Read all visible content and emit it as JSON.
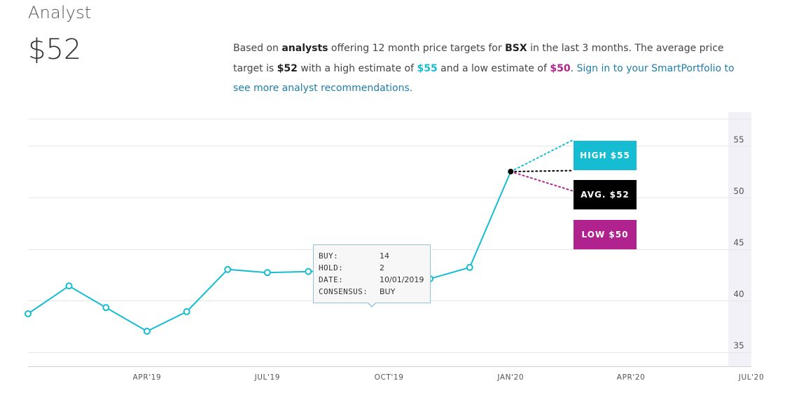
{
  "header": {
    "title": "Analyst",
    "avg_price": "$52"
  },
  "summary": {
    "t1": "Based on ",
    "analysts": "analysts",
    "t2": " offering 12 month price targets for ",
    "ticker": "BSX",
    "t3": " in the last 3 months. The average price target is ",
    "avg": "$52",
    "t4": " with a high estimate of ",
    "high": "$55",
    "t5": " and a low estimate of ",
    "low": "$50",
    "t6": ". ",
    "link": "Sign in to your SmartPortfolio to see more analyst recommendations",
    "t7": "."
  },
  "targets": {
    "high_label": "HIGH $55",
    "avg_label": "AVG. $52",
    "low_label": "LOW $50"
  },
  "tooltip": {
    "buy_key": "BUY:",
    "buy_val": "14",
    "hold_key": "HOLD:",
    "hold_val": "2",
    "date_key": "DATE:",
    "date_val": "10/01/2019",
    "consensus_key": "CONSENSUS:",
    "consensus_val": "BUY"
  },
  "colors": {
    "line": "#16bdd2",
    "high": "#16bdd2",
    "avg": "#000000",
    "low": "#b0238e",
    "grid": "#e6e6e6",
    "forecast_band": "#f1f1f7"
  },
  "chart_data": {
    "type": "line",
    "title": "",
    "xlabel": "",
    "ylabel": "",
    "ylim": [
      33,
      57
    ],
    "y_ticks": [
      35,
      40,
      45,
      50,
      55
    ],
    "y_axis_position": "right",
    "grid": true,
    "x_ticks": [
      {
        "label": "APR'19",
        "date": "2019-04-01"
      },
      {
        "label": "JUL'19",
        "date": "2019-07-01"
      },
      {
        "label": "OCT'19",
        "date": "2019-10-01"
      },
      {
        "label": "JAN'20",
        "date": "2020-01-01"
      },
      {
        "label": "APR'20",
        "date": "2020-04-01"
      },
      {
        "label": "JUL'20",
        "date": "2020-07-01"
      }
    ],
    "xlim": [
      "2019-01-01",
      "2020-07-01"
    ],
    "series": [
      {
        "points": [
          {
            "date": "2019-01-01",
            "value": 38.1
          },
          {
            "date": "2019-02-01",
            "value": 40.8
          },
          {
            "date": "2019-03-01",
            "value": 38.7
          },
          {
            "date": "2019-04-01",
            "value": 36.4
          },
          {
            "date": "2019-05-01",
            "value": 38.3
          },
          {
            "date": "2019-06-01",
            "value": 42.4
          },
          {
            "date": "2019-07-01",
            "value": 42.1
          },
          {
            "date": "2019-08-01",
            "value": 42.2
          },
          {
            "date": "2019-09-01",
            "value": 42.3
          },
          {
            "date": "2019-10-01",
            "value": 40.3
          },
          {
            "date": "2019-11-01",
            "value": 41.5
          },
          {
            "date": "2019-12-01",
            "value": 42.6
          },
          {
            "date": "2020-01-01",
            "value": 51.9
          }
        ]
      }
    ],
    "forecast": {
      "from": {
        "date": "2020-01-01",
        "value": 51.9
      },
      "high": 55,
      "average": 52,
      "low": 50
    }
  }
}
